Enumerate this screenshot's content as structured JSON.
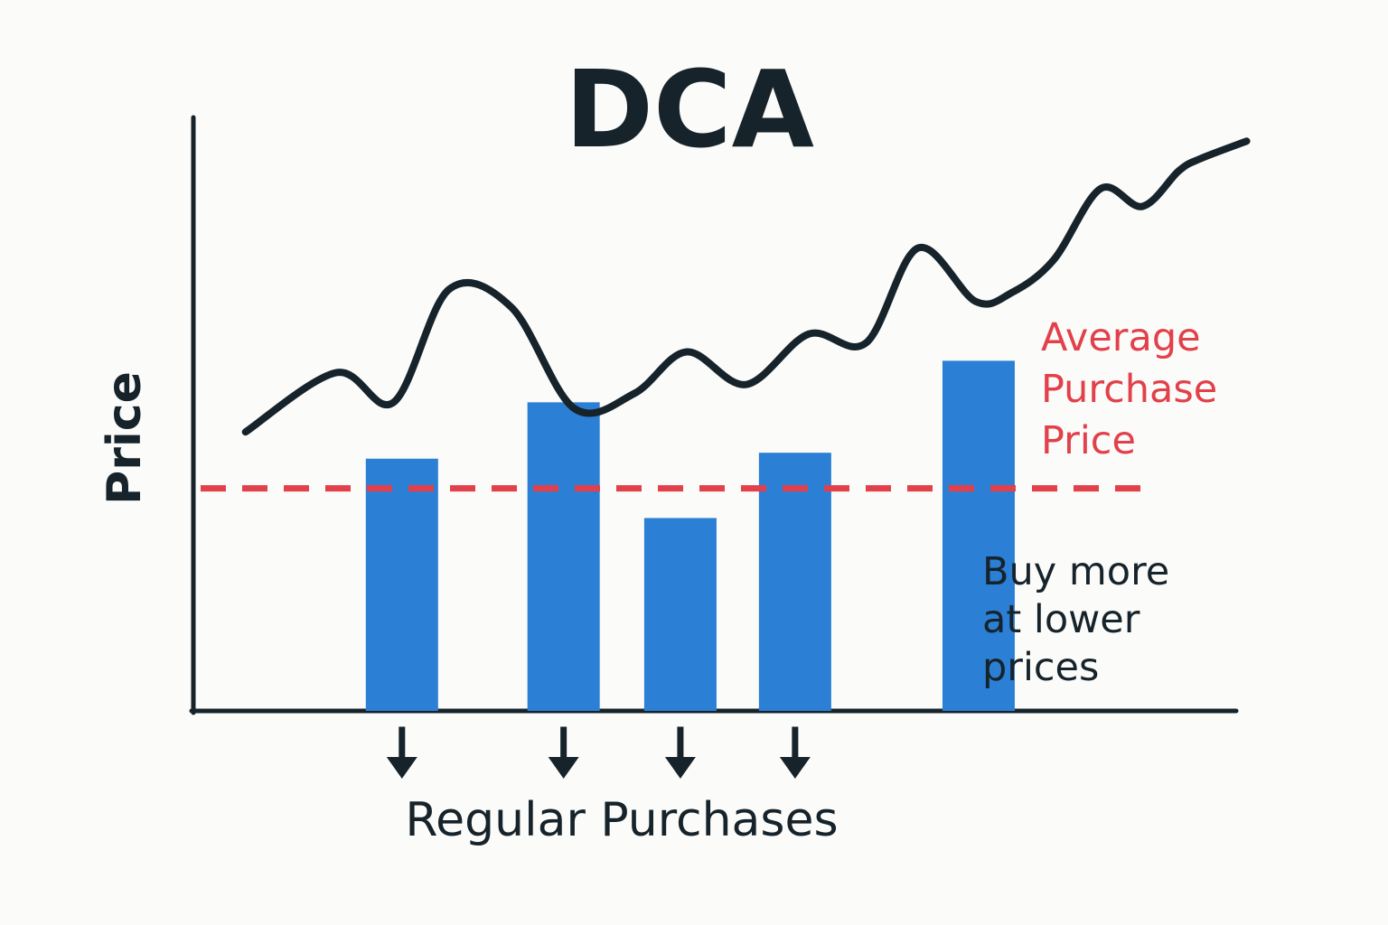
{
  "chart_data": {
    "type": "bar",
    "title": "DCA",
    "ylabel": "Price",
    "xlabel": "Regular Purchases",
    "ylim": [
      0,
      100
    ],
    "colors": {
      "bars": "#2b7fd4",
      "price_line": "#16232b",
      "average_line": "#e2404a",
      "text": "#16232b",
      "background": "#fbfbf9"
    },
    "purchases": [
      {
        "x": 20,
        "value": 42.5
      },
      {
        "x": 35.5,
        "value": 52
      },
      {
        "x": 46.7,
        "value": 32.5
      },
      {
        "x": 57.7,
        "value": 43.5
      },
      {
        "x": 75.3,
        "value": 59
      }
    ],
    "purchase_arrow_x": [
      20,
      35.5,
      46.7,
      57.7
    ],
    "average_price": 37.5,
    "price_line": {
      "x": [
        5,
        13.7,
        19.2,
        24.5,
        30.5,
        36.5,
        42.3,
        47.3,
        53,
        59,
        64.5,
        69.5,
        75,
        78.5,
        82.5,
        87,
        91,
        94.5,
        96.5,
        101
      ],
      "y": [
        47,
        57,
        52,
        71,
        68,
        51,
        53.5,
        60.5,
        55,
        63.5,
        62,
        78,
        69,
        70.5,
        76,
        88,
        85,
        91,
        93,
        96
      ]
    },
    "annotations": {
      "average_label": [
        "Average",
        "Purchase",
        "Price"
      ],
      "buy_more_label": [
        "Buy more",
        "at lower",
        "prices"
      ]
    },
    "grid": false
  }
}
